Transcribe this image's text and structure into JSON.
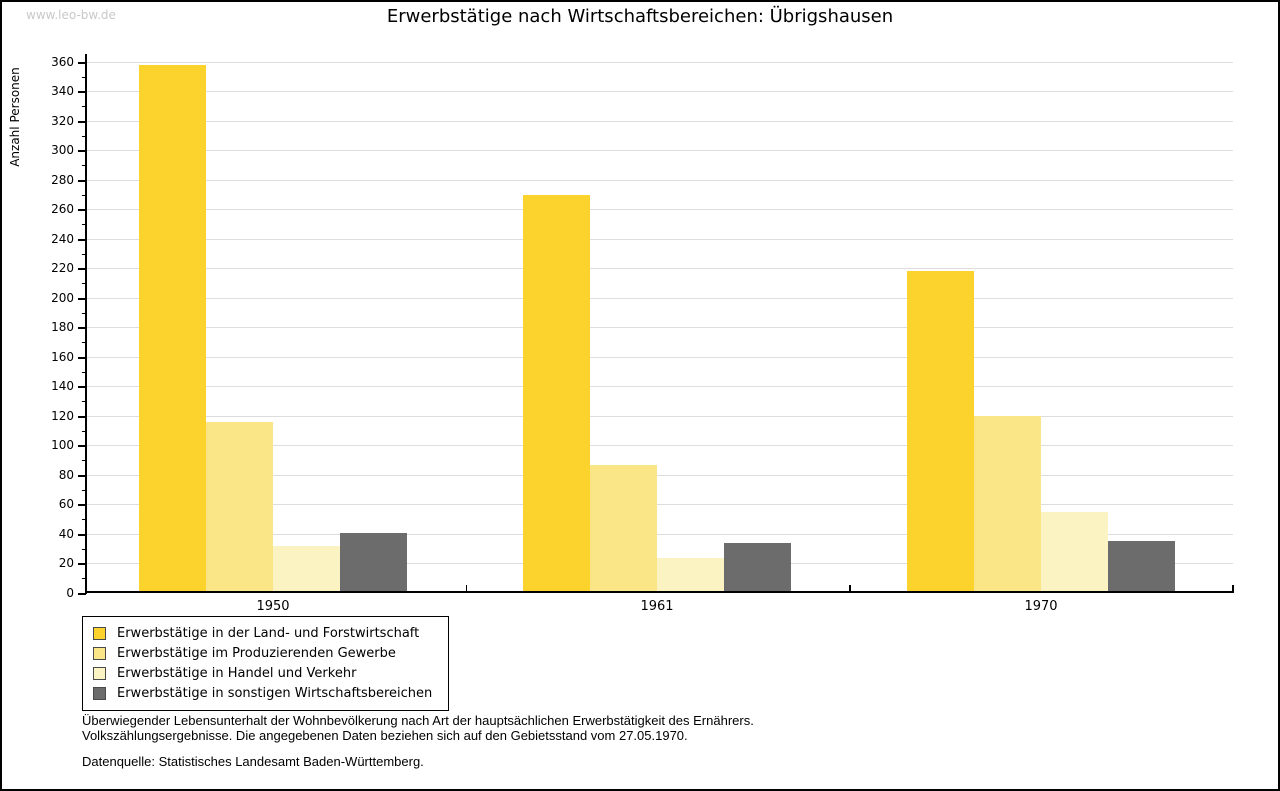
{
  "watermark": "www.leo-bw.de",
  "title": "Erwerbstätige nach Wirtschaftsbereichen: Übrigshausen",
  "chart_data": {
    "type": "bar",
    "title": "Erwerbstätige nach Wirtschaftsbereichen: Übrigshausen",
    "xlabel": "",
    "ylabel": "Anzahl Personen",
    "categories": [
      "1950",
      "1961",
      "1970"
    ],
    "series": [
      {
        "name": "Erwerbstätige in der Land- und Forstwirtschaft",
        "color": "#FBD32C",
        "values": [
          358,
          270,
          218
        ]
      },
      {
        "name": "Erwerbstätige im Produzierenden Gewerbe",
        "color": "#FBE687",
        "values": [
          116,
          87,
          120
        ]
      },
      {
        "name": "Erwerbstätige in Handel und Verkehr",
        "color": "#FCF3C2",
        "values": [
          32,
          24,
          55
        ]
      },
      {
        "name": "Erwerbstätige in sonstigen Wirtschaftsbereichen",
        "color": "#6C6C6C",
        "values": [
          41,
          34,
          35
        ]
      }
    ],
    "ylim": [
      0,
      360
    ],
    "ytick_step": 20,
    "ytick_minor_step": 10,
    "grid": true,
    "gridline_color": "#DDDDDD",
    "legend_position": "bottom-left"
  },
  "footnotes": {
    "line1": "Überwiegender Lebensunterhalt der Wohnbevölkerung nach Art der hauptsächlichen Erwerbstätigkeit des Ernährers.",
    "line2": "Volkszählungsergebnisse. Die angegebenen Daten beziehen sich auf den Gebietsstand vom 27.05.1970.",
    "source": "Datenquelle: Statistisches Landesamt Baden-Württemberg."
  }
}
